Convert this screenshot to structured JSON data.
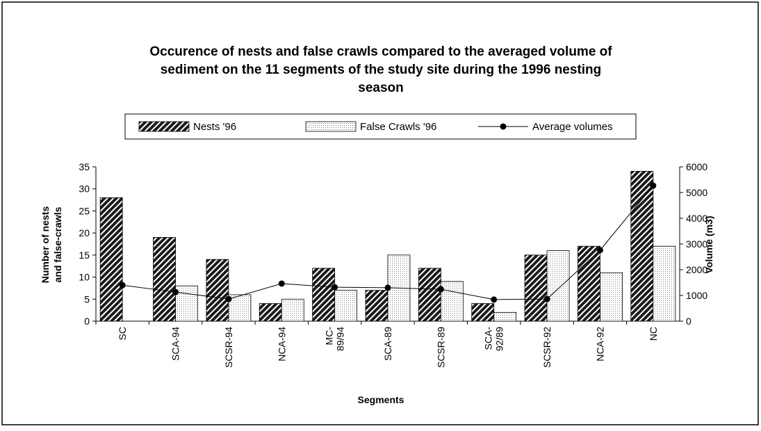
{
  "chart_data": {
    "type": "bar_line",
    "title": [
      "Occurence of nests and false crawls compared to the averaged volume of",
      "sediment on the 11 segments of the study site during the 1996 nesting",
      "season"
    ],
    "categories": [
      "SC",
      "SCA-94",
      "SCSR-94",
      "NCA-94",
      "MC-\n89/94",
      "SCA-89",
      "SCSR-89",
      "SCA-\n92/89",
      "SCSR-92",
      "NCA-92",
      "NC"
    ],
    "series": [
      {
        "name": "Nests '96",
        "color": "#1a1a1a",
        "kind": "bar",
        "values": [
          28,
          19,
          14,
          4,
          12,
          7,
          12,
          4,
          15,
          17,
          34
        ]
      },
      {
        "name": "False Crawls '96",
        "color": "#9a9a9a",
        "kind": "bar",
        "values": [
          0,
          8,
          6,
          5,
          7,
          15,
          9,
          2,
          16,
          11,
          17
        ]
      },
      {
        "name": "Average volumes",
        "color": "#000000",
        "kind": "line",
        "axis": "y2",
        "values": [
          1400,
          1130,
          860,
          1460,
          1320,
          1300,
          1240,
          840,
          860,
          2760,
          5270
        ]
      }
    ],
    "ylabel": [
      "Number of nests",
      "and false-crawls"
    ],
    "y2label": "Volume (m3)",
    "xlabel": "Segments",
    "ylim": [
      0,
      35
    ],
    "yticks": [
      0,
      5,
      10,
      15,
      20,
      25,
      30,
      35
    ],
    "y2lim": [
      0,
      6000
    ],
    "y2ticks": [
      0,
      1000,
      2000,
      3000,
      4000,
      5000,
      6000
    ]
  }
}
